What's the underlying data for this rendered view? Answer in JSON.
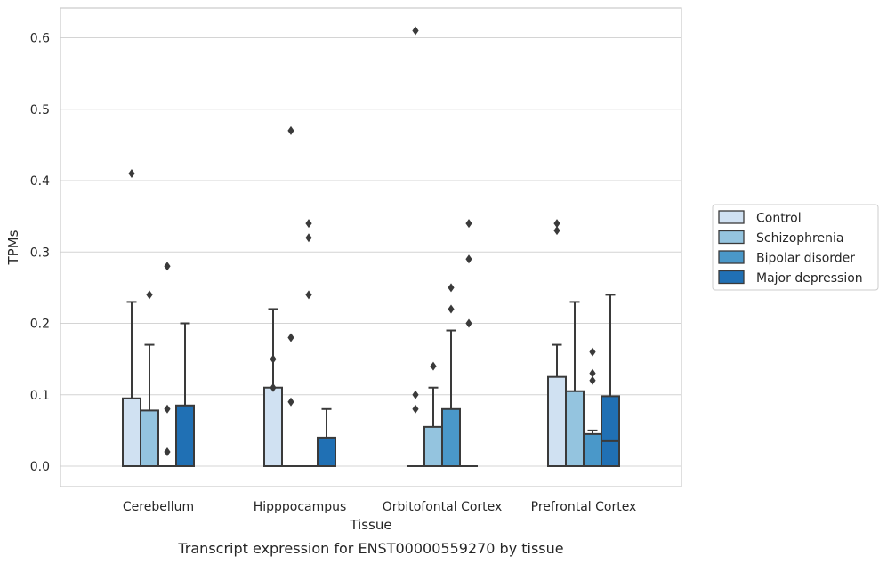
{
  "chart_data": {
    "type": "box",
    "title": "",
    "caption": "Transcript expression for ENST00000559270 by tissue",
    "xlabel": "Tissue",
    "ylabel": "TPMs",
    "ylim": [
      -0.03,
      0.64
    ],
    "yticks": [
      0.0,
      0.1,
      0.2,
      0.3,
      0.4,
      0.5,
      0.6
    ],
    "ytick_labels": [
      "0.0",
      "0.1",
      "0.2",
      "0.3",
      "0.4",
      "0.5",
      "0.6"
    ],
    "grid": "horizontal",
    "legend_position": "right",
    "categories": [
      "Cerebellum",
      "Hipppocampus",
      "Orbitofontal Cortex",
      "Prefrontal Cortex"
    ],
    "series": [
      {
        "name": "Control",
        "color": "#d0e1f2",
        "boxes": [
          {
            "q1": 0.0,
            "median": 0.0,
            "q3": 0.095,
            "whisker_low": 0.0,
            "whisker_high": 0.23,
            "outliers": [
              0.41
            ]
          },
          {
            "q1": 0.0,
            "median": 0.0,
            "q3": 0.11,
            "whisker_low": 0.0,
            "whisker_high": 0.22,
            "outliers": [
              0.15,
              0.11
            ]
          },
          {
            "q1": 0.0,
            "median": 0.0,
            "q3": 0.0,
            "whisker_low": 0.0,
            "whisker_high": 0.0,
            "outliers": [
              0.61,
              0.1,
              0.08
            ]
          },
          {
            "q1": 0.0,
            "median": 0.0,
            "q3": 0.125,
            "whisker_low": 0.0,
            "whisker_high": 0.17,
            "outliers": [
              0.34,
              0.33
            ]
          }
        ]
      },
      {
        "name": "Schizophrenia",
        "color": "#94c4df",
        "boxes": [
          {
            "q1": 0.0,
            "median": 0.0,
            "q3": 0.078,
            "whisker_low": 0.0,
            "whisker_high": 0.17,
            "outliers": [
              0.24
            ]
          },
          {
            "q1": 0.0,
            "median": 0.0,
            "q3": 0.0,
            "whisker_low": 0.0,
            "whisker_high": 0.0,
            "outliers": [
              0.47,
              0.18,
              0.09
            ]
          },
          {
            "q1": 0.0,
            "median": 0.0,
            "q3": 0.055,
            "whisker_low": 0.0,
            "whisker_high": 0.11,
            "outliers": [
              0.14
            ]
          },
          {
            "q1": 0.0,
            "median": 0.0,
            "q3": 0.105,
            "whisker_low": 0.0,
            "whisker_high": 0.23,
            "outliers": []
          }
        ]
      },
      {
        "name": "Bipolar disorder",
        "color": "#4a98c9",
        "boxes": [
          {
            "q1": 0.0,
            "median": 0.0,
            "q3": 0.0,
            "whisker_low": 0.0,
            "whisker_high": 0.0,
            "outliers": [
              0.28,
              0.08,
              0.02
            ]
          },
          {
            "q1": 0.0,
            "median": 0.0,
            "q3": 0.0,
            "whisker_low": 0.0,
            "whisker_high": 0.0,
            "outliers": [
              0.34,
              0.32,
              0.24
            ]
          },
          {
            "q1": 0.0,
            "median": 0.0,
            "q3": 0.08,
            "whisker_low": 0.0,
            "whisker_high": 0.19,
            "outliers": [
              0.25,
              0.22
            ]
          },
          {
            "q1": 0.0,
            "median": 0.0,
            "q3": 0.045,
            "whisker_low": 0.0,
            "whisker_high": 0.05,
            "outliers": [
              0.16,
              0.13,
              0.12
            ]
          }
        ]
      },
      {
        "name": "Major depression",
        "color": "#2070b4",
        "boxes": [
          {
            "q1": 0.0,
            "median": 0.0,
            "q3": 0.085,
            "whisker_low": 0.0,
            "whisker_high": 0.2,
            "outliers": []
          },
          {
            "q1": 0.0,
            "median": 0.0,
            "q3": 0.04,
            "whisker_low": 0.0,
            "whisker_high": 0.08,
            "outliers": []
          },
          {
            "q1": 0.0,
            "median": 0.0,
            "q3": 0.0,
            "whisker_low": 0.0,
            "whisker_high": 0.0,
            "outliers": [
              0.34,
              0.29,
              0.2
            ]
          },
          {
            "q1": 0.0,
            "median": 0.035,
            "q3": 0.098,
            "whisker_low": 0.0,
            "whisker_high": 0.24,
            "outliers": []
          }
        ]
      }
    ]
  }
}
